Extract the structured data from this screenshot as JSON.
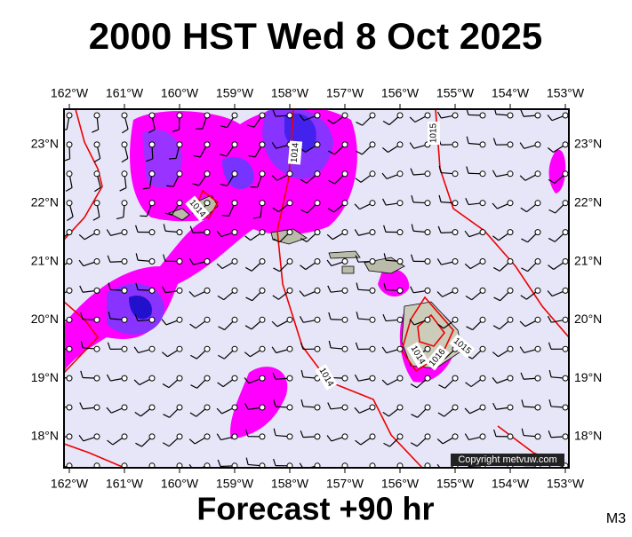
{
  "title": "2000 HST Wed 8 Oct 2025",
  "map": {
    "lon_labels": [
      "162°W",
      "161°W",
      "160°W",
      "159°W",
      "158°W",
      "157°W",
      "156°W",
      "155°W",
      "154°W",
      "153°W"
    ],
    "lat_labels": [
      "23°N",
      "22°N",
      "21°N",
      "20°N",
      "19°N",
      "18°N"
    ],
    "isobar_labels": [
      "1015",
      "1014",
      "1014",
      "1014",
      "1015",
      "1016",
      "1014"
    ]
  },
  "copyright": "Copyright metvuw.com",
  "footer": "Forecast +90 hr",
  "code": "M3"
}
